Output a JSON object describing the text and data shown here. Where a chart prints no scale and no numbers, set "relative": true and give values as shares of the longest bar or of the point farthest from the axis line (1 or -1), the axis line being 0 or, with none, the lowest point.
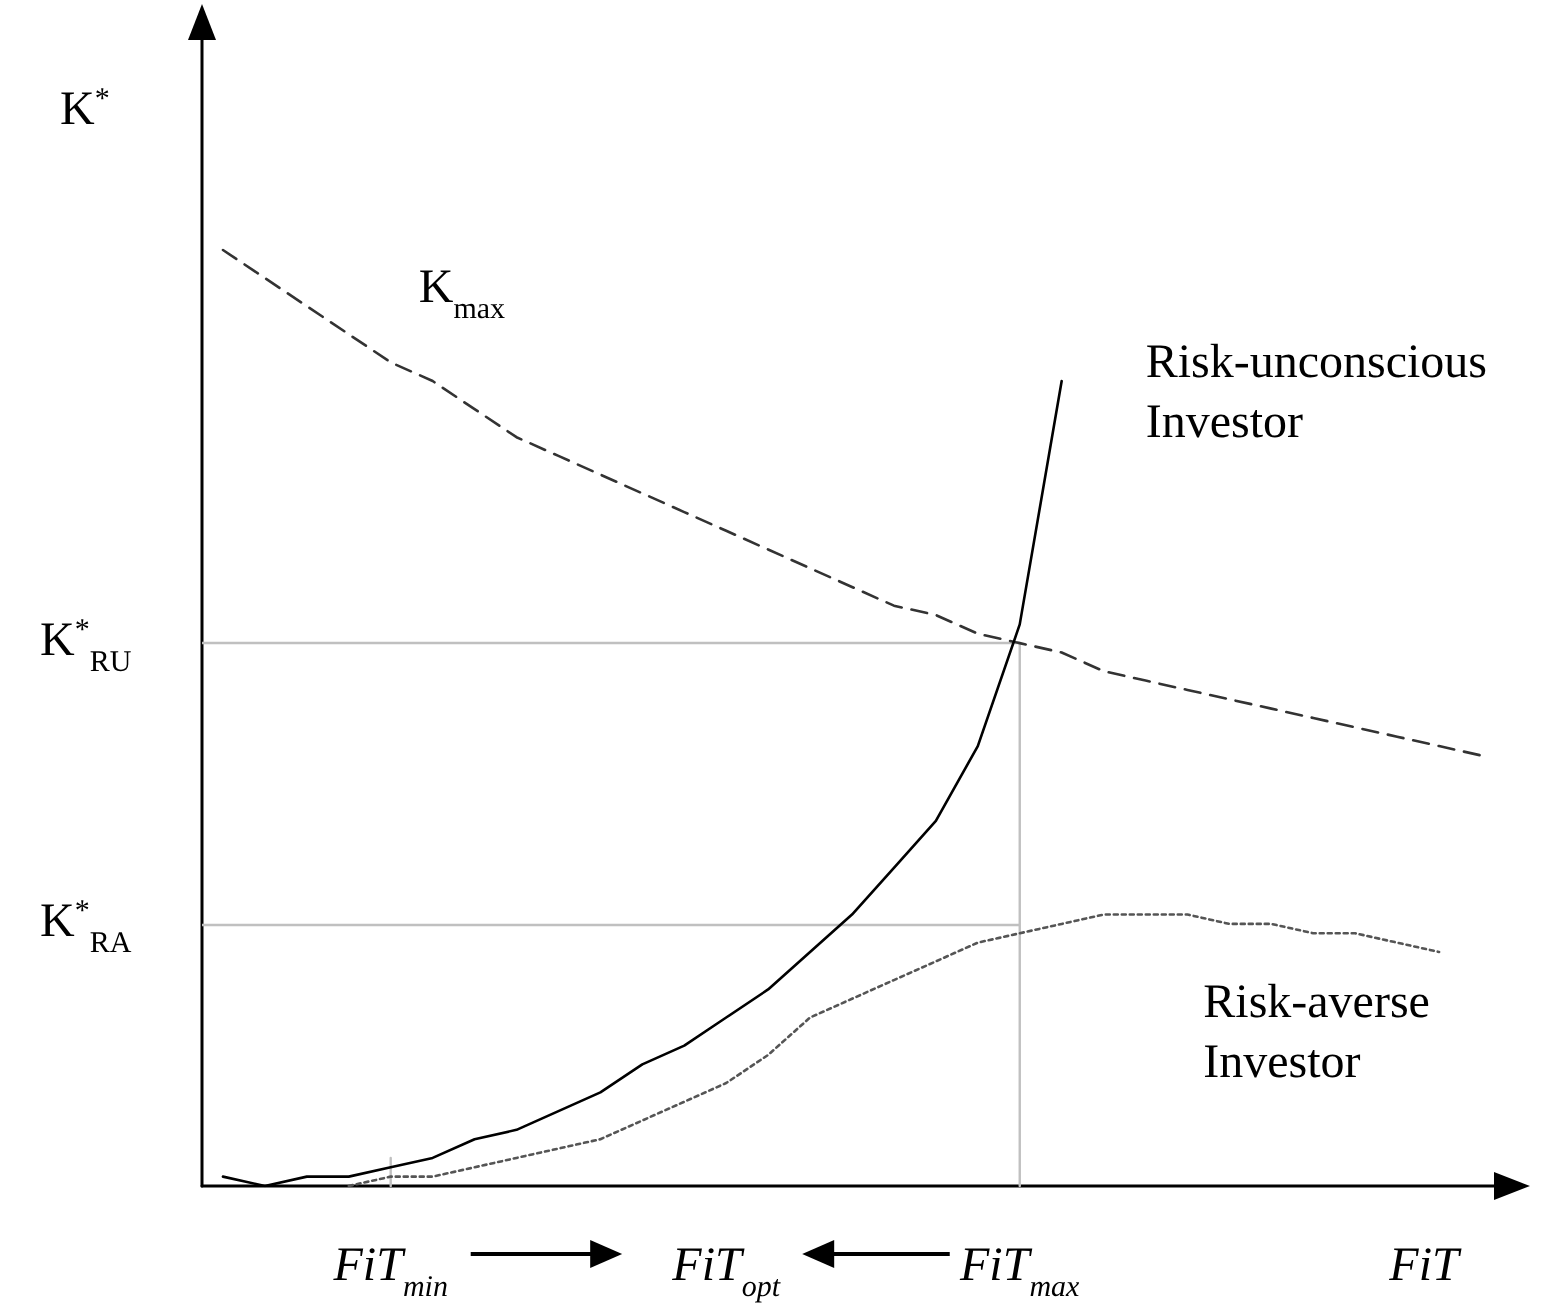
{
  "chart_data": {
    "type": "line",
    "relative": true,
    "ylabel": "K$^{*}$",
    "xlabel": "FiT",
    "categories": [
      null,
      null,
      null,
      null,
      "FiT$_{min}$",
      null,
      null,
      null,
      null,
      null,
      null,
      null,
      "FiT$_{opt}$",
      null,
      null,
      null,
      null,
      null,
      null,
      "FiT$_{max}$",
      null,
      null,
      null,
      null,
      null,
      null,
      null,
      null,
      null,
      null,
      null
    ],
    "series": [
      {
        "name": "K$_{max}$",
        "color": "#333333",
        "line_style": "dashed",
        "values": [
          1.0,
          0.97,
          0.94,
          0.91,
          0.88,
          0.86,
          0.83,
          0.8,
          0.78,
          0.76,
          0.74,
          0.72,
          0.7,
          0.68,
          0.66,
          0.64,
          0.62,
          0.61,
          0.59,
          0.58,
          0.57,
          0.55,
          0.54,
          0.53,
          0.52,
          0.51,
          0.5,
          0.49,
          0.48,
          0.47,
          0.46
        ]
      },
      {
        "name": "Risk-unconscious Investor",
        "color": "#000000",
        "line_style": "solid",
        "values": [
          0.01,
          0,
          0.01,
          0.01,
          0.02,
          0.03,
          0.05,
          0.06,
          0.08,
          0.1,
          0.13,
          0.15,
          0.18,
          0.21,
          0.25,
          0.29,
          0.34,
          0.39,
          0.47,
          0.6,
          0.86,
          null,
          null,
          null,
          null,
          null,
          null,
          null,
          null,
          null,
          null
        ]
      },
      {
        "name": "Risk-averse Investor",
        "color": "#555555",
        "line_style": "dotted",
        "values": [
          null,
          null,
          null,
          0,
          0.01,
          0.01,
          0.02,
          0.03,
          0.04,
          0.05,
          0.07,
          0.09,
          0.11,
          0.14,
          0.18,
          0.2,
          0.22,
          0.24,
          0.26,
          0.27,
          0.28,
          0.29,
          0.29,
          0.29,
          0.28,
          0.28,
          0.27,
          0.27,
          0.26,
          0.25,
          null
        ]
      },
      {
        "color": "#c0c0c0",
        "line_style": "solid",
        "x": [
          "FiT$_{min}$",
          "FiT$_{min}$"
        ],
        "values": [
          0,
          0.03
        ]
      },
      {
        "color": "#c0c0c0",
        "line_style": "solid",
        "x": [
          "FiT$_{max}$",
          "FiT$_{max}$"
        ],
        "values": [
          0,
          0.58
        ]
      }
    ],
    "ref_lines": [
      {
        "axis": "y",
        "value": 0.58,
        "label": "K$^{*}$$_{RU}$",
        "color": "#c0c0c0"
      },
      {
        "axis": "y",
        "value": 0.28,
        "label": "K$^{*}$$_{RA}$",
        "color": "#c0c0c0"
      }
    ],
    "grid": false,
    "legend": false,
    "marker": "none"
  }
}
